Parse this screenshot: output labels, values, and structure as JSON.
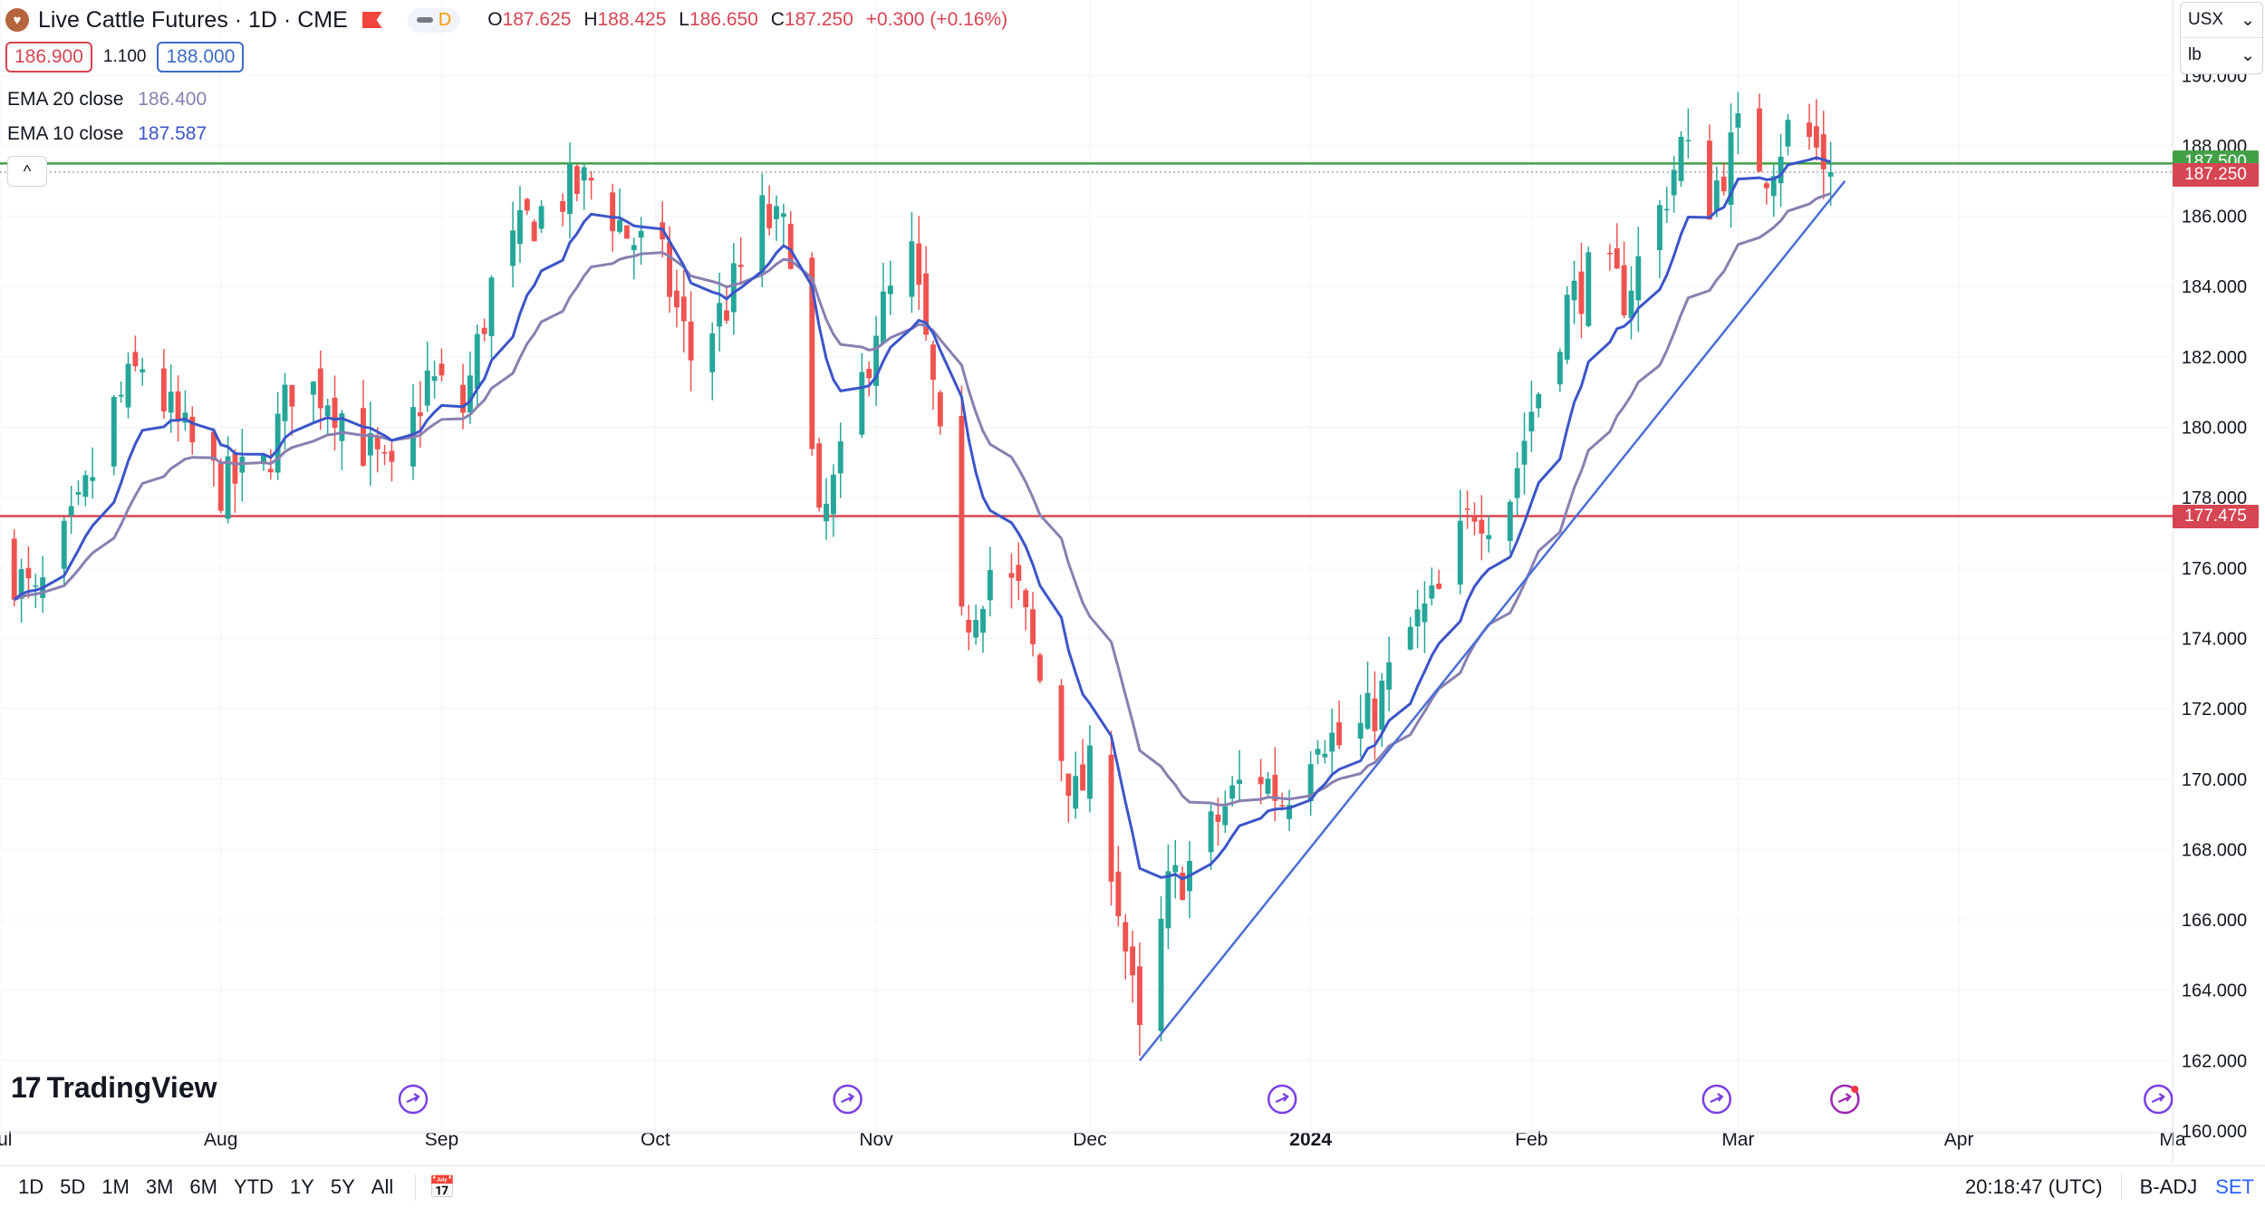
{
  "header": {
    "symbol": "Live Cattle Futures · 1D · CME",
    "toggle_label": "D",
    "ohlc": {
      "o_label": "O",
      "o": "187.625",
      "h_label": "H",
      "h": "188.425",
      "l_label": "L",
      "l": "186.650",
      "c_label": "C",
      "c": "187.250",
      "change": "+0.300 (+0.16%)"
    }
  },
  "quote": {
    "bid": "186.900",
    "spread": "1.100",
    "ask": "188.000"
  },
  "indicators": [
    {
      "label": "EMA 20 close",
      "value": "186.400",
      "color": "#8a7fb0"
    },
    {
      "label": "EMA 10 close",
      "value": "187.587",
      "color": "#3b55c9"
    }
  ],
  "units": {
    "currency": "USX",
    "unit": "lb"
  },
  "price_labels": {
    "resistance": "187.500",
    "last": "187.250",
    "support": "177.475",
    "resistance_color": "#43a047",
    "last_color": "#d64552",
    "support_color": "#d64552"
  },
  "chart_data": {
    "type": "candlestick",
    "ylim": [
      160,
      190.6
    ],
    "y_ticks": [
      "190.000",
      "188.000",
      "186.000",
      "184.000",
      "182.000",
      "180.000",
      "178.000",
      "176.000",
      "174.000",
      "172.000",
      "170.000",
      "168.000",
      "166.000",
      "164.000",
      "162.000",
      "160.000"
    ],
    "x_ticks": [
      {
        "label": "Jul",
        "x": "2023-07-01"
      },
      {
        "label": "Aug",
        "x": "2023-08-01"
      },
      {
        "label": "Sep",
        "x": "2023-09-01"
      },
      {
        "label": "Oct",
        "x": "2023-10-01"
      },
      {
        "label": "Nov",
        "x": "2023-11-01"
      },
      {
        "label": "Dec",
        "x": "2023-12-01"
      },
      {
        "label": "2024",
        "x": "2024-01-01"
      },
      {
        "label": "Feb",
        "x": "2024-02-01"
      },
      {
        "label": "Mar",
        "x": "2024-03-01"
      },
      {
        "label": "Apr",
        "x": "2024-04-01"
      },
      {
        "label": "Ma",
        "x": "2024-05-01"
      }
    ],
    "x_range": [
      "2023-07-01",
      "2024-05-01"
    ],
    "close_anchors": [
      [
        "2023-07-01",
        176.5
      ],
      [
        "2023-07-06",
        175.0
      ],
      [
        "2023-07-12",
        177.5
      ],
      [
        "2023-07-17",
        180.5
      ],
      [
        "2023-07-21",
        181.8
      ],
      [
        "2023-07-26",
        180.0
      ],
      [
        "2023-08-01",
        178.3
      ],
      [
        "2023-08-07",
        178.8
      ],
      [
        "2023-08-11",
        181.2
      ],
      [
        "2023-08-16",
        181.0
      ],
      [
        "2023-08-21",
        179.5
      ],
      [
        "2023-08-25",
        178.4
      ],
      [
        "2023-08-30",
        181.4
      ],
      [
        "2023-09-04",
        180.5
      ],
      [
        "2023-09-08",
        184.0
      ],
      [
        "2023-09-13",
        185.8
      ],
      [
        "2023-09-18",
        186.6
      ],
      [
        "2023-09-22",
        187.0
      ],
      [
        "2023-09-27",
        185.5
      ],
      [
        "2023-10-02",
        184.6
      ],
      [
        "2023-10-06",
        182.0
      ],
      [
        "2023-10-11",
        183.5
      ],
      [
        "2023-10-16",
        186.0
      ],
      [
        "2023-10-20",
        185.3
      ],
      [
        "2023-10-24",
        177.0
      ],
      [
        "2023-10-28",
        179.5
      ],
      [
        "2023-11-01",
        183.0
      ],
      [
        "2023-11-06",
        184.8
      ],
      [
        "2023-11-09",
        181.0
      ],
      [
        "2023-11-13",
        174.2
      ],
      [
        "2023-11-17",
        176.0
      ],
      [
        "2023-11-21",
        175.2
      ],
      [
        "2023-11-25",
        172.0
      ],
      [
        "2023-11-29",
        169.5
      ],
      [
        "2023-12-02",
        170.5
      ],
      [
        "2023-12-05",
        166.5
      ],
      [
        "2023-12-08",
        162.5
      ],
      [
        "2023-12-12",
        166.8
      ],
      [
        "2023-12-16",
        167.8
      ],
      [
        "2023-12-20",
        169.2
      ],
      [
        "2023-12-24",
        170.4
      ],
      [
        "2023-12-28",
        169.4
      ],
      [
        "2024-01-02",
        171.5
      ],
      [
        "2024-01-06",
        170.8
      ],
      [
        "2024-01-10",
        172.0
      ],
      [
        "2024-01-15",
        174.2
      ],
      [
        "2024-01-19",
        175.2
      ],
      [
        "2024-01-24",
        177.8
      ],
      [
        "2024-01-28",
        177.4
      ],
      [
        "2024-02-01",
        180.5
      ],
      [
        "2024-02-06",
        183.5
      ],
      [
        "2024-02-10",
        184.5
      ],
      [
        "2024-02-14",
        183.8
      ],
      [
        "2024-02-18",
        185.5
      ],
      [
        "2024-02-22",
        188.0
      ],
      [
        "2024-02-26",
        186.5
      ],
      [
        "2024-03-01",
        188.3
      ],
      [
        "2024-03-05",
        187.4
      ],
      [
        "2024-03-09",
        188.8
      ],
      [
        "2024-03-14",
        187.25
      ]
    ],
    "ema_series": [
      {
        "name": "EMA 20 close",
        "period": 20,
        "color": "#8a7fb0"
      },
      {
        "name": "EMA 10 close",
        "period": 10,
        "color": "#3b55c9"
      }
    ],
    "trendline": {
      "from": [
        "2023-12-08",
        162.0
      ],
      "to": [
        "2024-03-16",
        187.0
      ],
      "color": "#4a6fd4"
    },
    "hlines": [
      {
        "y": 187.5,
        "color": "#43a047"
      },
      {
        "y": 177.475,
        "color": "#d64552"
      }
    ],
    "last_price": 187.25,
    "up_color": "#26a69a",
    "down_color": "#ef5350",
    "event_markers": [
      "2023-08-28",
      "2023-10-28",
      "2023-12-28",
      "2024-02-27",
      "2024-03-16",
      "2024-04-29"
    ]
  },
  "bottom_bar": {
    "ranges": [
      "1D",
      "5D",
      "1M",
      "3M",
      "6M",
      "YTD",
      "1Y",
      "5Y",
      "All"
    ],
    "time": "20:18:47 (UTC)",
    "badj": "B-ADJ",
    "set": "SET"
  },
  "brand": "TradingView"
}
